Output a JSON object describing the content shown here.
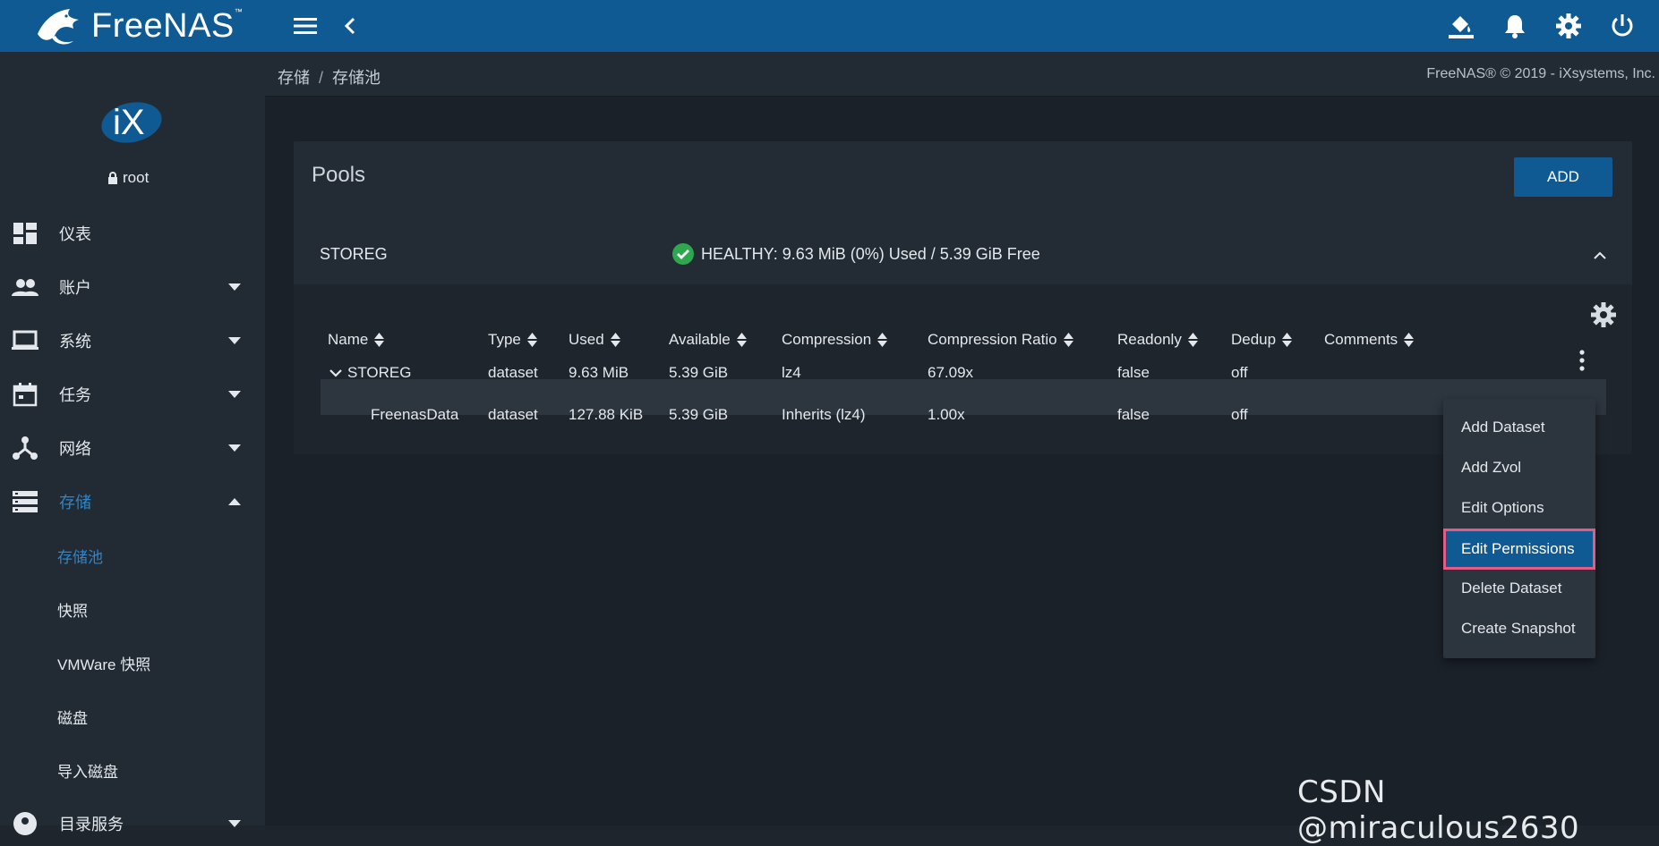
{
  "app": {
    "brand": "FreeNAS",
    "trademark": "™"
  },
  "topbar": {
    "menu_icon": "hamburger-icon",
    "back_icon": "chevron-left-icon",
    "theme_icon": "paint-bucket-icon",
    "notifications_icon": "bell-icon",
    "settings_icon": "gear-icon",
    "power_icon": "power-icon"
  },
  "breadcrumb": {
    "items": [
      "存储",
      "存储池"
    ],
    "separator": "/"
  },
  "copyright": "FreeNAS® © 2019 - iXsystems, Inc.",
  "sidebar": {
    "user": "root",
    "items": [
      {
        "label": "仪表",
        "icon": "dashboard-icon"
      },
      {
        "label": "账户",
        "icon": "people-icon"
      },
      {
        "label": "系统",
        "icon": "laptop-icon"
      },
      {
        "label": "任务",
        "icon": "calendar-icon"
      },
      {
        "label": "网络",
        "icon": "network-icon"
      },
      {
        "label": "存储",
        "icon": "storage-icon"
      },
      {
        "label": "目录服务",
        "icon": "directory-icon"
      }
    ],
    "sub_items": [
      "存储池",
      "快照",
      "VMWare 快照",
      "磁盘",
      "导入磁盘"
    ]
  },
  "pools": {
    "title": "Pools",
    "add_label": "ADD",
    "pool_name": "STOREG",
    "status": "HEALTHY: 9.63 MiB (0%) Used / 5.39 GiB Free",
    "columns": [
      "Name",
      "Type",
      "Used",
      "Available",
      "Compression",
      "Compression Ratio",
      "Readonly",
      "Dedup",
      "Comments"
    ],
    "rows": [
      {
        "name": "STOREG",
        "type": "dataset",
        "used": "9.63 MiB",
        "available": "5.39 GiB",
        "compression": "lz4",
        "ratio": "67.09x",
        "readonly": "false",
        "dedup": "off",
        "comments": ""
      },
      {
        "name": "FreenasData",
        "type": "dataset",
        "used": "127.88 KiB",
        "available": "5.39 GiB",
        "compression": "Inherits (lz4)",
        "ratio": "1.00x",
        "readonly": "false",
        "dedup": "off",
        "comments": ""
      }
    ]
  },
  "context_menu": {
    "items": [
      "Add Dataset",
      "Add Zvol",
      "Edit Options",
      "Edit Permissions",
      "Delete Dataset",
      "Create Snapshot"
    ],
    "highlighted": "Edit Permissions"
  },
  "watermark": "CSDN @miraculous2630",
  "colors": {
    "accent": "#0f5a92",
    "healthy": "#2ea84f",
    "highlight_border": "#e45b83",
    "active_nav": "#2f85c9"
  }
}
